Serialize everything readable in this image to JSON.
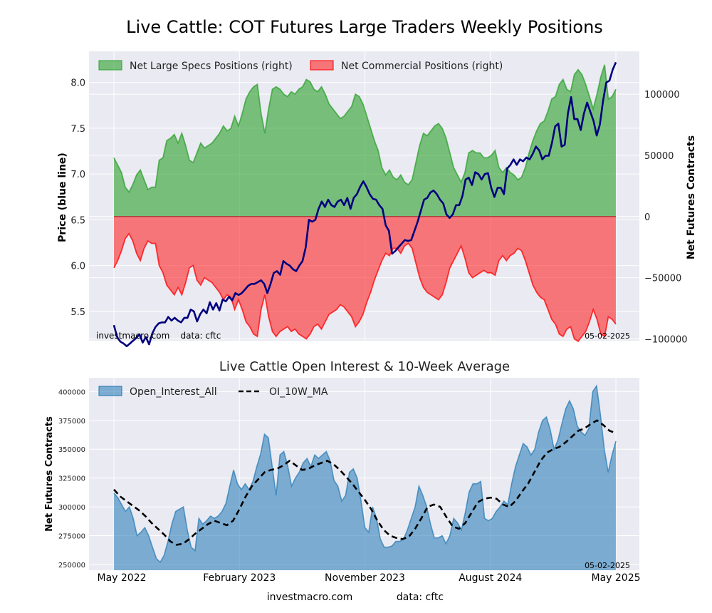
{
  "figure": {
    "title": "Live Cattle: COT Futures Large Traders Weekly Positions",
    "footer_site": "investmacro.com",
    "footer_data": "data: cftc"
  },
  "chart_data": [
    {
      "type": "area",
      "title": "",
      "ylabel_left": "Price (blue line)",
      "ylabel_right": "Net Futures Contracts",
      "ylim_left": [
        5.18,
        8.34
      ],
      "ylim_right": [
        -101500,
        135000
      ],
      "yticks_left": [
        "5.5",
        "6.0",
        "6.5",
        "7.0",
        "7.5",
        "8.0"
      ],
      "yticks_right": [
        "−100000",
        "−50000",
        "0",
        "50000",
        "100000"
      ],
      "legend_position": "top-left",
      "grid": true,
      "watermark_left": "investmacro.com    data: cftc",
      "watermark_right": "05-02-2025",
      "series": [
        {
          "name": "Net Large Specs Positions (right)",
          "color": "#2ca02c",
          "values": [
            48000,
            42000,
            36000,
            24000,
            20000,
            26000,
            34000,
            38000,
            30000,
            22000,
            24000,
            24000,
            46000,
            48000,
            62000,
            64000,
            67000,
            60000,
            68000,
            58000,
            46000,
            44000,
            52000,
            60000,
            56000,
            58000,
            60000,
            64000,
            68000,
            74000,
            70000,
            72000,
            82000,
            74000,
            84000,
            96000,
            102000,
            106000,
            108000,
            84000,
            68000,
            88000,
            104000,
            106000,
            104000,
            100000,
            98000,
            102000,
            100000,
            104000,
            106000,
            112000,
            110000,
            104000,
            102000,
            106000,
            100000,
            92000,
            88000,
            84000,
            80000,
            82000,
            86000,
            90000,
            100000,
            98000,
            92000,
            82000,
            72000,
            62000,
            54000,
            40000,
            34000,
            38000,
            32000,
            30000,
            34000,
            28000,
            26000,
            30000,
            44000,
            58000,
            68000,
            66000,
            70000,
            74000,
            76000,
            72000,
            64000,
            52000,
            40000,
            34000,
            28000,
            36000,
            52000,
            54000,
            52000,
            52000,
            48000,
            48000,
            50000,
            54000,
            40000,
            36000,
            40000,
            36000,
            34000,
            30000,
            32000,
            40000,
            52000,
            62000,
            70000,
            76000,
            78000,
            86000,
            96000,
            98000,
            108000,
            112000,
            104000,
            102000,
            116000,
            120000,
            116000,
            108000,
            98000,
            88000,
            100000,
            114000,
            124000,
            96000,
            98000,
            104000
          ],
          "closing_value": 104000
        },
        {
          "name": "Net Commercial Positions (right)",
          "color": "#ff0000",
          "values": [
            -42000,
            -36000,
            -28000,
            -18000,
            -14000,
            -20000,
            -30000,
            -36000,
            -26000,
            -20000,
            -22000,
            -22000,
            -40000,
            -46000,
            -56000,
            -60000,
            -64000,
            -58000,
            -64000,
            -54000,
            -42000,
            -40000,
            -52000,
            -56000,
            -50000,
            -52000,
            -54000,
            -58000,
            -62000,
            -68000,
            -64000,
            -66000,
            -76000,
            -68000,
            -76000,
            -86000,
            -90000,
            -96000,
            -98000,
            -76000,
            -64000,
            -82000,
            -94000,
            -98000,
            -94000,
            -92000,
            -90000,
            -94000,
            -92000,
            -96000,
            -98000,
            -100000,
            -96000,
            -90000,
            -88000,
            -92000,
            -86000,
            -80000,
            -78000,
            -76000,
            -72000,
            -74000,
            -78000,
            -82000,
            -90000,
            -86000,
            -80000,
            -70000,
            -62000,
            -52000,
            -44000,
            -36000,
            -30000,
            -32000,
            -26000,
            -26000,
            -30000,
            -24000,
            -22000,
            -26000,
            -38000,
            -50000,
            -58000,
            -62000,
            -64000,
            -66000,
            -68000,
            -64000,
            -54000,
            -42000,
            -36000,
            -30000,
            -24000,
            -34000,
            -46000,
            -50000,
            -48000,
            -46000,
            -44000,
            -46000,
            -46000,
            -48000,
            -36000,
            -32000,
            -36000,
            -32000,
            -30000,
            -26000,
            -28000,
            -36000,
            -46000,
            -56000,
            -62000,
            -66000,
            -68000,
            -76000,
            -84000,
            -88000,
            -96000,
            -98000,
            -92000,
            -90000,
            -100000,
            -102000,
            -98000,
            -94000,
            -86000,
            -76000,
            -84000,
            -96000,
            -98000,
            -82000,
            -84000,
            -88000
          ],
          "closing_value": -88000
        },
        {
          "name": "Price",
          "color": "#00007f",
          "values": [
            5.35,
            5.22,
            5.17,
            5.15,
            5.12,
            5.15,
            5.18,
            5.21,
            5.25,
            5.16,
            5.22,
            5.14,
            5.26,
            5.33,
            5.37,
            5.38,
            5.38,
            5.44,
            5.4,
            5.43,
            5.4,
            5.38,
            5.43,
            5.43,
            5.52,
            5.5,
            5.39,
            5.47,
            5.52,
            5.48,
            5.6,
            5.52,
            5.59,
            5.51,
            5.63,
            5.61,
            5.66,
            5.62,
            5.7,
            5.68,
            5.7,
            5.74,
            5.78,
            5.8,
            5.8,
            5.82,
            5.84,
            5.8,
            5.7,
            5.8,
            5.92,
            5.94,
            5.9,
            6.05,
            6.02,
            6.0,
            5.96,
            5.94,
            6.0,
            6.05,
            6.2,
            6.5,
            6.48,
            6.5,
            6.62,
            6.7,
            6.64,
            6.72,
            6.66,
            6.64,
            6.7,
            6.72,
            6.66,
            6.74,
            6.62,
            6.74,
            6.78,
            6.86,
            6.92,
            6.86,
            6.78,
            6.73,
            6.72,
            6.66,
            6.62,
            6.44,
            6.38,
            6.13,
            6.16,
            6.2,
            6.24,
            6.28,
            6.27,
            6.28,
            6.38,
            6.48,
            6.6,
            6.72,
            6.74,
            6.8,
            6.82,
            6.78,
            6.72,
            6.68,
            6.56,
            6.52,
            6.56,
            6.66,
            6.66,
            6.76,
            6.94,
            6.96,
            6.88,
            7.02,
            7.0,
            6.94,
            7.0,
            7.01,
            6.85,
            6.75,
            6.85,
            6.85,
            6.78,
            7.06,
            7.1,
            7.16,
            7.1,
            7.16,
            7.14,
            7.18,
            7.16,
            7.22,
            7.3,
            7.26,
            7.16,
            7.2,
            7.2,
            7.34,
            7.52,
            7.55,
            7.3,
            7.32,
            7.66,
            7.84,
            7.6,
            7.6,
            7.48,
            7.66,
            7.78,
            7.68,
            7.58,
            7.42,
            7.54,
            7.8,
            8.0,
            8.02,
            8.14,
            8.22
          ],
          "closing_value": 8.22
        }
      ]
    },
    {
      "type": "area",
      "title": "Live Cattle Open Interest & 10-Week Average",
      "ylabel": "Net Futures Contracts",
      "ylim": [
        245000,
        412000
      ],
      "yticks": [
        "250000",
        "275000",
        "300000",
        "325000",
        "350000",
        "375000",
        "400000"
      ],
      "x_tick_labels": [
        "May 2022",
        "February 2023",
        "November 2023",
        "August 2024",
        "May 2025"
      ],
      "legend_position": "top-left",
      "grid": true,
      "watermark_right": "05-02-2025",
      "series": [
        {
          "name": "Open_Interest_All",
          "color": "#1f77b4",
          "values": [
            312000,
            308000,
            302000,
            296000,
            300000,
            290000,
            275000,
            278000,
            282000,
            275000,
            265000,
            255000,
            252000,
            258000,
            270000,
            285000,
            296000,
            298000,
            300000,
            280000,
            265000,
            262000,
            290000,
            285000,
            288000,
            292000,
            290000,
            292000,
            296000,
            303000,
            318000,
            332000,
            320000,
            315000,
            320000,
            315000,
            322000,
            335000,
            346000,
            363000,
            360000,
            335000,
            310000,
            345000,
            348000,
            336000,
            318000,
            325000,
            330000,
            338000,
            342000,
            335000,
            345000,
            342000,
            345000,
            348000,
            340000,
            323000,
            318000,
            305000,
            310000,
            330000,
            333000,
            325000,
            305000,
            282000,
            278000,
            300000,
            290000,
            272000,
            265000,
            265000,
            266000,
            270000,
            270000,
            272000,
            280000,
            290000,
            300000,
            318000,
            310000,
            300000,
            285000,
            273000,
            273000,
            275000,
            268000,
            275000,
            290000,
            286000,
            280000,
            295000,
            313000,
            320000,
            320000,
            322000,
            290000,
            288000,
            290000,
            296000,
            300000,
            305000,
            302000,
            320000,
            335000,
            345000,
            355000,
            352000,
            345000,
            350000,
            365000,
            375000,
            378000,
            367000,
            350000,
            358000,
            372000,
            385000,
            392000,
            385000,
            370000,
            365000,
            362000,
            368000,
            400000,
            405000,
            380000,
            350000,
            330000,
            345000,
            357000
          ],
          "closing_value": 357000
        },
        {
          "name": "OI_10W_MA",
          "color": "#000000",
          "values": [
            315000,
            309000,
            305000,
            301000,
            297000,
            292000,
            286000,
            281000,
            276000,
            270000,
            267000,
            268000,
            272000,
            277000,
            281000,
            285000,
            288000,
            286000,
            284000,
            288000,
            298000,
            309000,
            318000,
            324000,
            330000,
            332000,
            333000,
            336000,
            340000,
            336000,
            332000,
            333000,
            336000,
            338000,
            340000,
            337000,
            332000,
            326000,
            320000,
            313000,
            306000,
            298000,
            288000,
            280000,
            275000,
            273000,
            272000,
            274000,
            281000,
            290000,
            300000,
            302000,
            300000,
            291000,
            283000,
            281000,
            286000,
            295000,
            304000,
            307000,
            308000,
            307000,
            302000,
            300000,
            305000,
            313000,
            320000,
            330000,
            340000,
            347000,
            350000,
            352000,
            356000,
            361000,
            366000,
            368000,
            372000,
            375000,
            371000,
            366000,
            364000
          ],
          "closing_value": 364000
        }
      ]
    }
  ]
}
